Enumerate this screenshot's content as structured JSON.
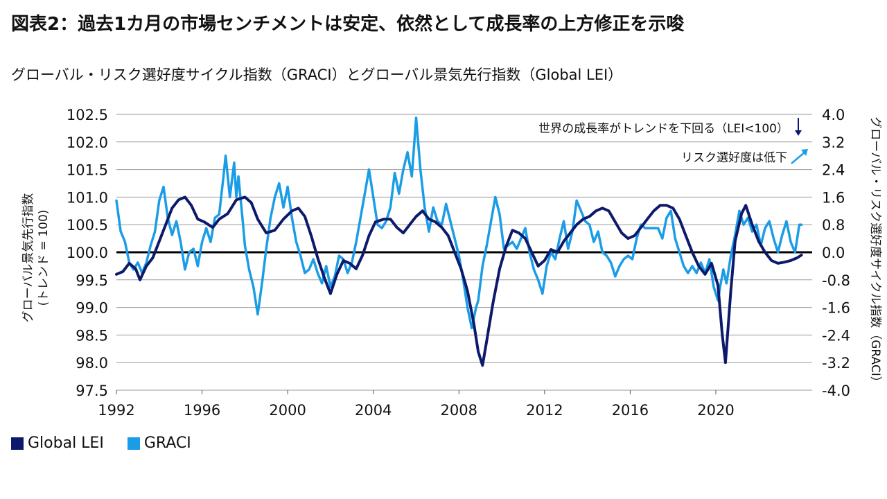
{
  "header": {
    "title": "図表2：過去1カ月の市場センチメントは安定、依然として成長率の上方修正を示唆",
    "subtitle": "グローバル・リスク選好度サイクル指数（GRACI）とグローバル景気先行指数（Global LEI）"
  },
  "colors": {
    "lei": "#0d1a6b",
    "graci": "#1a9de6",
    "zero": "#000000",
    "grid": "#9a9a9a"
  },
  "chart_data": {
    "type": "line",
    "x_ticks": [
      "1992",
      "1996",
      "2000",
      "2004",
      "2008",
      "2012",
      "2016",
      "2020"
    ],
    "xlim": [
      1992,
      2024.5
    ],
    "left_axis": {
      "label_line1": "グローバル景気先行指数",
      "label_line2": "(トレンド = 100)",
      "ticks": [
        "102.5",
        "102.0",
        "101.5",
        "101.0",
        "100.5",
        "100.0",
        "99.5",
        "99.0",
        "98.5",
        "98.0",
        "97.5"
      ],
      "ylim": [
        97.5,
        102.5
      ]
    },
    "right_axis": {
      "label": "グローバル・リスク選好度サイクル指数（GRACI）",
      "ticks": [
        "4.0",
        "3.2",
        "2.4",
        "1.6",
        "0.8",
        "0.0",
        "-0.8",
        "-1.6",
        "-2.4",
        "-3.2",
        "-4.0"
      ],
      "ylim": [
        -4.0,
        4.0
      ]
    },
    "annotations": [
      {
        "text": "世界の成長率がトレンドを下回る（LEI<100）",
        "arrow": "down"
      },
      {
        "text": "リスク選好度は低下",
        "arrow": "up-right"
      }
    ],
    "series": [
      {
        "name": "Global LEI",
        "axis": "left",
        "points": [
          [
            1992.0,
            99.6
          ],
          [
            1992.3,
            99.65
          ],
          [
            1992.6,
            99.8
          ],
          [
            1992.9,
            99.7
          ],
          [
            1993.1,
            99.5
          ],
          [
            1993.4,
            99.75
          ],
          [
            1993.7,
            99.9
          ],
          [
            1994.0,
            100.2
          ],
          [
            1994.3,
            100.5
          ],
          [
            1994.6,
            100.8
          ],
          [
            1994.9,
            100.95
          ],
          [
            1995.2,
            101.0
          ],
          [
            1995.5,
            100.85
          ],
          [
            1995.8,
            100.6
          ],
          [
            1996.1,
            100.55
          ],
          [
            1996.5,
            100.45
          ],
          [
            1996.8,
            100.6
          ],
          [
            1997.2,
            100.7
          ],
          [
            1997.6,
            100.95
          ],
          [
            1998.0,
            101.0
          ],
          [
            1998.3,
            100.9
          ],
          [
            1998.6,
            100.6
          ],
          [
            1999.0,
            100.35
          ],
          [
            1999.4,
            100.4
          ],
          [
            1999.8,
            100.6
          ],
          [
            2000.2,
            100.75
          ],
          [
            2000.5,
            100.8
          ],
          [
            2000.8,
            100.65
          ],
          [
            2001.1,
            100.3
          ],
          [
            2001.4,
            99.9
          ],
          [
            2001.7,
            99.55
          ],
          [
            2002.0,
            99.25
          ],
          [
            2002.3,
            99.6
          ],
          [
            2002.6,
            99.85
          ],
          [
            2002.9,
            99.8
          ],
          [
            2003.2,
            99.7
          ],
          [
            2003.5,
            99.95
          ],
          [
            2003.8,
            100.3
          ],
          [
            2004.1,
            100.55
          ],
          [
            2004.5,
            100.6
          ],
          [
            2004.8,
            100.6
          ],
          [
            2005.1,
            100.45
          ],
          [
            2005.4,
            100.35
          ],
          [
            2005.7,
            100.5
          ],
          [
            2006.0,
            100.65
          ],
          [
            2006.3,
            100.75
          ],
          [
            2006.6,
            100.6
          ],
          [
            2006.9,
            100.55
          ],
          [
            2007.2,
            100.45
          ],
          [
            2007.5,
            100.3
          ],
          [
            2007.8,
            100.0
          ],
          [
            2008.1,
            99.7
          ],
          [
            2008.4,
            99.3
          ],
          [
            2008.7,
            98.7
          ],
          [
            2008.9,
            98.2
          ],
          [
            2009.1,
            97.95
          ],
          [
            2009.3,
            98.4
          ],
          [
            2009.6,
            99.1
          ],
          [
            2009.9,
            99.7
          ],
          [
            2010.2,
            100.1
          ],
          [
            2010.5,
            100.4
          ],
          [
            2010.8,
            100.35
          ],
          [
            2011.1,
            100.25
          ],
          [
            2011.4,
            100.0
          ],
          [
            2011.7,
            99.75
          ],
          [
            2012.0,
            99.85
          ],
          [
            2012.3,
            100.05
          ],
          [
            2012.6,
            100.0
          ],
          [
            2012.9,
            100.2
          ],
          [
            2013.2,
            100.35
          ],
          [
            2013.5,
            100.5
          ],
          [
            2013.8,
            100.6
          ],
          [
            2014.1,
            100.65
          ],
          [
            2014.4,
            100.75
          ],
          [
            2014.7,
            100.8
          ],
          [
            2015.0,
            100.75
          ],
          [
            2015.3,
            100.55
          ],
          [
            2015.6,
            100.35
          ],
          [
            2015.9,
            100.25
          ],
          [
            2016.2,
            100.3
          ],
          [
            2016.5,
            100.45
          ],
          [
            2016.8,
            100.6
          ],
          [
            2017.1,
            100.75
          ],
          [
            2017.4,
            100.85
          ],
          [
            2017.7,
            100.85
          ],
          [
            2018.0,
            100.8
          ],
          [
            2018.3,
            100.6
          ],
          [
            2018.6,
            100.3
          ],
          [
            2018.9,
            100.0
          ],
          [
            2019.2,
            99.75
          ],
          [
            2019.5,
            99.6
          ],
          [
            2019.8,
            99.8
          ],
          [
            2020.1,
            99.4
          ],
          [
            2020.3,
            98.5
          ],
          [
            2020.45,
            98.0
          ],
          [
            2020.7,
            99.3
          ],
          [
            2020.9,
            100.2
          ],
          [
            2021.2,
            100.7
          ],
          [
            2021.4,
            100.85
          ],
          [
            2021.7,
            100.5
          ],
          [
            2022.0,
            100.2
          ],
          [
            2022.3,
            100.0
          ],
          [
            2022.6,
            99.85
          ],
          [
            2022.9,
            99.8
          ],
          [
            2023.2,
            99.82
          ],
          [
            2023.5,
            99.85
          ],
          [
            2023.8,
            99.9
          ],
          [
            2024.0,
            99.95
          ]
        ]
      },
      {
        "name": "GRACI",
        "axis": "right",
        "points": [
          [
            1992.0,
            1.5
          ],
          [
            1992.2,
            0.6
          ],
          [
            1992.4,
            0.3
          ],
          [
            1992.6,
            -0.3
          ],
          [
            1992.8,
            -0.5
          ],
          [
            1993.0,
            -0.3
          ],
          [
            1993.2,
            -0.6
          ],
          [
            1993.4,
            -0.3
          ],
          [
            1993.6,
            0.2
          ],
          [
            1993.8,
            0.6
          ],
          [
            1994.0,
            1.5
          ],
          [
            1994.2,
            1.9
          ],
          [
            1994.4,
            1.0
          ],
          [
            1994.6,
            0.5
          ],
          [
            1994.8,
            0.9
          ],
          [
            1995.0,
            0.3
          ],
          [
            1995.2,
            -0.5
          ],
          [
            1995.4,
            0.0
          ],
          [
            1995.6,
            0.1
          ],
          [
            1995.8,
            -0.4
          ],
          [
            1996.0,
            0.3
          ],
          [
            1996.2,
            0.7
          ],
          [
            1996.4,
            0.3
          ],
          [
            1996.6,
            1.0
          ],
          [
            1996.8,
            1.1
          ],
          [
            1997.0,
            2.2
          ],
          [
            1997.1,
            2.8
          ],
          [
            1997.3,
            1.6
          ],
          [
            1997.5,
            2.6
          ],
          [
            1997.6,
            1.6
          ],
          [
            1997.7,
            2.2
          ],
          [
            1997.9,
            0.9
          ],
          [
            1998.0,
            0.2
          ],
          [
            1998.2,
            -0.5
          ],
          [
            1998.4,
            -1.0
          ],
          [
            1998.6,
            -1.8
          ],
          [
            1998.8,
            -0.9
          ],
          [
            1999.0,
            0.1
          ],
          [
            1999.2,
            1.0
          ],
          [
            1999.4,
            1.6
          ],
          [
            1999.6,
            2.0
          ],
          [
            1999.8,
            1.3
          ],
          [
            2000.0,
            1.9
          ],
          [
            2000.2,
            1.0
          ],
          [
            2000.4,
            0.3
          ],
          [
            2000.6,
            -0.1
          ],
          [
            2000.8,
            -0.6
          ],
          [
            2001.0,
            -0.5
          ],
          [
            2001.2,
            -0.2
          ],
          [
            2001.4,
            -0.6
          ],
          [
            2001.6,
            -0.9
          ],
          [
            2001.8,
            -0.4
          ],
          [
            2002.0,
            -1.0
          ],
          [
            2002.2,
            -0.7
          ],
          [
            2002.4,
            -0.1
          ],
          [
            2002.6,
            -0.2
          ],
          [
            2002.8,
            -0.6
          ],
          [
            2003.0,
            -0.3
          ],
          [
            2003.2,
            0.3
          ],
          [
            2003.4,
            1.0
          ],
          [
            2003.6,
            1.7
          ],
          [
            2003.8,
            2.4
          ],
          [
            2004.0,
            1.6
          ],
          [
            2004.2,
            0.8
          ],
          [
            2004.4,
            0.7
          ],
          [
            2004.6,
            0.9
          ],
          [
            2004.8,
            1.3
          ],
          [
            2005.0,
            2.3
          ],
          [
            2005.2,
            1.7
          ],
          [
            2005.4,
            2.4
          ],
          [
            2005.6,
            2.9
          ],
          [
            2005.8,
            2.2
          ],
          [
            2006.0,
            3.9
          ],
          [
            2006.2,
            2.4
          ],
          [
            2006.4,
            1.3
          ],
          [
            2006.6,
            0.6
          ],
          [
            2006.8,
            1.3
          ],
          [
            2007.0,
            0.9
          ],
          [
            2007.2,
            0.8
          ],
          [
            2007.4,
            1.4
          ],
          [
            2007.6,
            0.9
          ],
          [
            2007.8,
            0.4
          ],
          [
            2008.0,
            -0.1
          ],
          [
            2008.2,
            -0.8
          ],
          [
            2008.4,
            -1.6
          ],
          [
            2008.6,
            -2.2
          ],
          [
            2008.8,
            -1.6
          ],
          [
            2008.9,
            -1.4
          ],
          [
            2009.1,
            -0.4
          ],
          [
            2009.3,
            0.2
          ],
          [
            2009.5,
            0.9
          ],
          [
            2009.7,
            1.6
          ],
          [
            2009.9,
            1.1
          ],
          [
            2010.1,
            0.1
          ],
          [
            2010.3,
            0.2
          ],
          [
            2010.5,
            0.3
          ],
          [
            2010.7,
            0.1
          ],
          [
            2010.9,
            0.4
          ],
          [
            2011.1,
            0.7
          ],
          [
            2011.3,
            0.0
          ],
          [
            2011.5,
            -0.5
          ],
          [
            2011.7,
            -0.8
          ],
          [
            2011.9,
            -1.2
          ],
          [
            2012.1,
            -0.4
          ],
          [
            2012.3,
            0.0
          ],
          [
            2012.5,
            -0.2
          ],
          [
            2012.7,
            0.4
          ],
          [
            2012.9,
            0.9
          ],
          [
            2013.1,
            0.1
          ],
          [
            2013.3,
            0.6
          ],
          [
            2013.5,
            1.5
          ],
          [
            2013.7,
            1.2
          ],
          [
            2013.9,
            0.9
          ],
          [
            2014.1,
            0.8
          ],
          [
            2014.3,
            0.3
          ],
          [
            2014.5,
            0.6
          ],
          [
            2014.7,
            0.0
          ],
          [
            2014.9,
            -0.1
          ],
          [
            2015.1,
            -0.3
          ],
          [
            2015.3,
            -0.7
          ],
          [
            2015.5,
            -0.4
          ],
          [
            2015.7,
            -0.2
          ],
          [
            2015.9,
            -0.1
          ],
          [
            2016.1,
            -0.2
          ],
          [
            2016.3,
            0.4
          ],
          [
            2016.5,
            0.8
          ],
          [
            2016.7,
            0.7
          ],
          [
            2016.9,
            0.7
          ],
          [
            2017.1,
            0.7
          ],
          [
            2017.3,
            0.7
          ],
          [
            2017.5,
            0.4
          ],
          [
            2017.7,
            1.0
          ],
          [
            2017.9,
            1.2
          ],
          [
            2018.1,
            0.4
          ],
          [
            2018.3,
            0.0
          ],
          [
            2018.5,
            -0.4
          ],
          [
            2018.7,
            -0.6
          ],
          [
            2018.9,
            -0.4
          ],
          [
            2019.1,
            -0.6
          ],
          [
            2019.3,
            -0.3
          ],
          [
            2019.5,
            -0.6
          ],
          [
            2019.7,
            -0.2
          ],
          [
            2019.9,
            -1.0
          ],
          [
            2020.1,
            -1.4
          ],
          [
            2020.2,
            -1.0
          ],
          [
            2020.35,
            -0.5
          ],
          [
            2020.5,
            -0.9
          ],
          [
            2020.7,
            -0.1
          ],
          [
            2020.9,
            0.5
          ],
          [
            2021.1,
            1.2
          ],
          [
            2021.3,
            0.8
          ],
          [
            2021.5,
            1.0
          ],
          [
            2021.7,
            0.6
          ],
          [
            2021.9,
            0.8
          ],
          [
            2022.1,
            0.2
          ],
          [
            2022.3,
            0.7
          ],
          [
            2022.5,
            0.9
          ],
          [
            2022.7,
            0.4
          ],
          [
            2022.9,
            0.0
          ],
          [
            2023.1,
            0.5
          ],
          [
            2023.3,
            0.9
          ],
          [
            2023.5,
            0.3
          ],
          [
            2023.7,
            0.0
          ],
          [
            2023.9,
            0.8
          ],
          [
            2024.0,
            0.8
          ]
        ]
      }
    ]
  },
  "legend": {
    "items": [
      {
        "label": "Global LEI",
        "color": "#0d1a6b"
      },
      {
        "label": "GRACI",
        "color": "#1a9de6"
      }
    ]
  }
}
